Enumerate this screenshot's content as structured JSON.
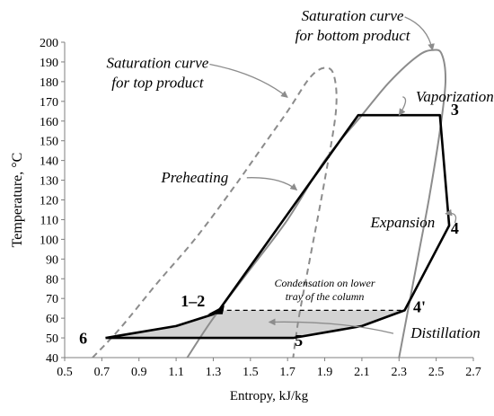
{
  "chart_data": {
    "type": "line",
    "xlabel": "Entropy, kJ/kg",
    "ylabel": "Temperature, °C",
    "xlim": [
      0.5,
      2.7
    ],
    "ylim": [
      40,
      200
    ],
    "x_ticks": [
      0.5,
      0.7,
      0.9,
      1.1,
      1.3,
      1.5,
      1.7,
      1.9,
      2.1,
      2.3,
      2.5,
      2.7
    ],
    "y_ticks": [
      40,
      50,
      60,
      70,
      80,
      90,
      100,
      110,
      120,
      130,
      140,
      150,
      160,
      170,
      180,
      190,
      200
    ],
    "grid": false,
    "series": [
      {
        "role": "top-saturation",
        "style": "dashed",
        "color": "#8c8c8c",
        "points": [
          [
            0.65,
            40
          ],
          [
            0.8,
            55
          ],
          [
            1.0,
            78
          ],
          [
            1.2,
            100
          ],
          [
            1.4,
            125
          ],
          [
            1.55,
            145
          ],
          [
            1.7,
            165
          ],
          [
            1.82,
            182
          ],
          [
            1.9,
            187
          ],
          [
            1.95,
            183
          ],
          [
            1.96,
            165
          ],
          [
            1.9,
            130
          ],
          [
            1.82,
            90
          ],
          [
            1.76,
            60
          ],
          [
            1.73,
            40
          ]
        ]
      },
      {
        "role": "bottom-saturation",
        "style": "solid",
        "color": "#8c8c8c",
        "points": [
          [
            1.16,
            40
          ],
          [
            1.3,
            60
          ],
          [
            1.5,
            85
          ],
          [
            1.7,
            110
          ],
          [
            1.9,
            140
          ],
          [
            2.1,
            163
          ],
          [
            2.25,
            180
          ],
          [
            2.4,
            193
          ],
          [
            2.48,
            196
          ],
          [
            2.53,
            194
          ],
          [
            2.55,
            180
          ],
          [
            2.52,
            155
          ],
          [
            2.46,
            120
          ],
          [
            2.4,
            90
          ],
          [
            2.33,
            55
          ],
          [
            2.3,
            40
          ]
        ]
      },
      {
        "role": "cycle",
        "style": "solid",
        "color": "#000000",
        "points": [
          [
            0.72,
            50
          ],
          [
            1.1,
            56
          ],
          [
            1.3,
            62
          ],
          [
            1.33,
            64
          ],
          [
            2.08,
            163
          ],
          [
            2.52,
            163
          ],
          [
            2.57,
            107
          ],
          [
            2.33,
            64
          ],
          [
            2.1,
            56
          ],
          [
            1.73,
            50
          ],
          [
            0.72,
            50
          ]
        ]
      },
      {
        "role": "condensation",
        "style": "dashed",
        "color": "#000000",
        "points": [
          [
            1.33,
            64
          ],
          [
            2.33,
            64
          ]
        ]
      }
    ],
    "region": {
      "role": "distillation",
      "fill": "#d3d3d3",
      "points": [
        [
          0.72,
          50
        ],
        [
          1.1,
          56
        ],
        [
          1.3,
          62
        ],
        [
          1.33,
          64
        ],
        [
          2.33,
          64
        ],
        [
          2.1,
          56
        ],
        [
          1.73,
          50
        ]
      ]
    },
    "point_labels": [
      {
        "text": "1–2",
        "x": 1.19,
        "y": 66
      },
      {
        "text": "3",
        "x": 2.6,
        "y": 163
      },
      {
        "text": "4",
        "x": 2.6,
        "y": 103
      },
      {
        "text": "4'",
        "x": 2.41,
        "y": 63
      },
      {
        "text": "5",
        "x": 1.76,
        "y": 46
      },
      {
        "text": "6",
        "x": 0.6,
        "y": 47
      }
    ],
    "annotations": [
      {
        "lines": [
          "Saturation curve",
          "for bottom product"
        ],
        "x": 2.05,
        "y": 211,
        "size": "large",
        "tip": [
          2.48,
          196
        ]
      },
      {
        "lines": [
          "Saturation curve",
          "for top product"
        ],
        "x": 1.0,
        "y": 187,
        "size": "large",
        "tip": [
          1.7,
          172
        ]
      },
      {
        "lines": [
          "Vaporization"
        ],
        "x": 2.6,
        "y": 170,
        "size": "large",
        "tip": [
          2.3,
          163
        ]
      },
      {
        "lines": [
          "Preheating"
        ],
        "x": 1.2,
        "y": 129,
        "size": "large",
        "tip": [
          1.75,
          125
        ]
      },
      {
        "lines": [
          "Expansion"
        ],
        "x": 2.32,
        "y": 106,
        "size": "large",
        "tip": [
          2.55,
          113
        ]
      },
      {
        "lines": [
          "Condensation on lower",
          "tray of the column"
        ],
        "x": 1.9,
        "y": 76,
        "size": "small",
        "tip": null
      },
      {
        "lines": [
          "Distillation"
        ],
        "x": 2.55,
        "y": 50,
        "size": "large",
        "tip": [
          1.6,
          58
        ]
      }
    ]
  }
}
